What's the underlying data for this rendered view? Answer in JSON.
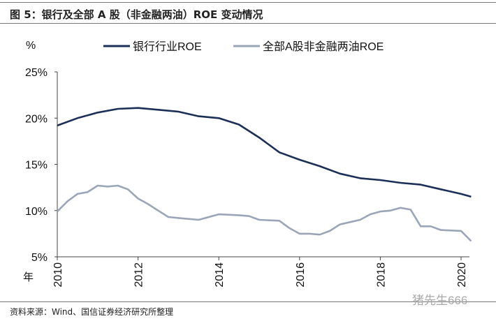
{
  "title": "图 5：银行及全部 A 股（非金融两油）ROE 变动情况",
  "source": "资料来源：Wind、国信证券经济研究所整理",
  "watermark": "猪先生666",
  "chart_data": {
    "type": "line",
    "ylabel": "%",
    "xlabel": "年",
    "xlim": [
      2010,
      2020.25
    ],
    "ylim": [
      5,
      25
    ],
    "yticks": [
      5,
      10,
      15,
      20,
      25
    ],
    "ytick_labels": [
      "5%",
      "10%",
      "15%",
      "20%",
      "25%"
    ],
    "xticks": [
      2010,
      2012,
      2014,
      2016,
      2018,
      2020
    ],
    "xtick_labels": [
      "2010",
      "2012",
      "2014",
      "2016",
      "2018",
      "2020"
    ],
    "legend": "top",
    "grid": false,
    "series": [
      {
        "name": "银行行业ROE",
        "color": "#1b2f57",
        "x": [
          2010,
          2010.5,
          2011,
          2011.5,
          2012,
          2012.5,
          2013,
          2013.5,
          2014,
          2014.5,
          2015,
          2015.5,
          2016,
          2016.5,
          2017,
          2017.5,
          2018,
          2018.5,
          2019,
          2019.5,
          2020,
          2020.25
        ],
        "y": [
          19.2,
          20.0,
          20.6,
          21.0,
          21.1,
          20.9,
          20.7,
          20.2,
          20.0,
          19.3,
          17.9,
          16.3,
          15.5,
          14.8,
          14.0,
          13.5,
          13.3,
          13.0,
          12.8,
          12.3,
          11.8,
          11.5
        ]
      },
      {
        "name": "全部A股非金融两油ROE",
        "color": "#9aa6b8",
        "x": [
          2010,
          2010.25,
          2010.5,
          2010.75,
          2011,
          2011.25,
          2011.5,
          2011.75,
          2012,
          2012.25,
          2012.5,
          2012.75,
          2013,
          2013.5,
          2014,
          2014.5,
          2014.75,
          2015,
          2015.5,
          2015.75,
          2016,
          2016.25,
          2016.5,
          2016.75,
          2017,
          2017.5,
          2017.75,
          2018,
          2018.25,
          2018.5,
          2018.75,
          2019,
          2019.25,
          2019.5,
          2020,
          2020.25
        ],
        "y": [
          9.9,
          11.0,
          11.8,
          12.0,
          12.7,
          12.6,
          12.7,
          12.3,
          11.3,
          10.7,
          10.0,
          9.3,
          9.2,
          9.0,
          9.6,
          9.5,
          9.4,
          9.0,
          8.9,
          8.1,
          7.5,
          7.5,
          7.4,
          7.8,
          8.5,
          9.0,
          9.6,
          9.9,
          10.0,
          10.3,
          10.1,
          8.3,
          8.3,
          7.9,
          7.8,
          6.7
        ]
      }
    ]
  }
}
